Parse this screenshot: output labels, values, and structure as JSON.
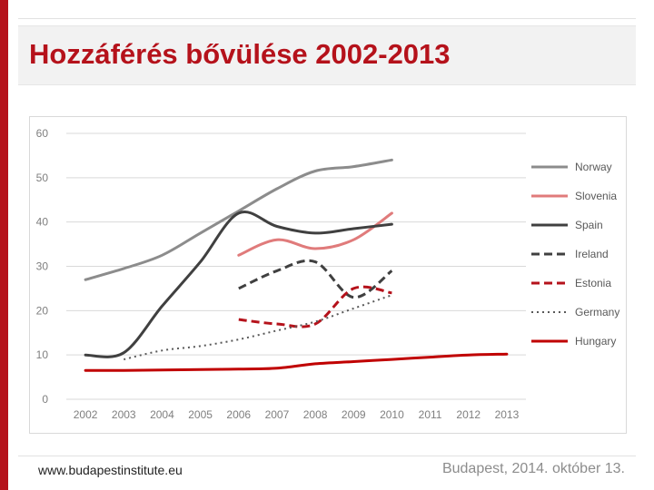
{
  "slide": {
    "title": "Hozzáférés bővülése 2002-2013",
    "footer_left": "www.budapestinstitute.eu",
    "footer_right": "Budapest, 2014. október 13.",
    "accent_color": "#b5121b"
  },
  "chart_data": {
    "type": "line",
    "title": "",
    "xlabel": "",
    "ylabel": "",
    "categories": [
      "2002",
      "2003",
      "2004",
      "2005",
      "2006",
      "2007",
      "2008",
      "2009",
      "2010",
      "2011",
      "2012",
      "2013"
    ],
    "ylim": [
      0,
      60
    ],
    "yticks": [
      0,
      10,
      20,
      30,
      40,
      50,
      60
    ],
    "grid": true,
    "legend_position": "right",
    "series": [
      {
        "name": "Norway",
        "color": "#8c8c8c",
        "dash": "solid",
        "values": [
          27,
          29.5,
          32.5,
          37.5,
          42.5,
          47.5,
          51.5,
          52.5,
          54,
          null,
          null,
          null
        ]
      },
      {
        "name": "Slovenia",
        "color": "#e07b7b",
        "dash": "solid",
        "values": [
          null,
          null,
          null,
          null,
          32.5,
          36,
          34,
          36,
          42,
          null,
          null,
          null
        ]
      },
      {
        "name": "Spain",
        "color": "#404040",
        "dash": "solid",
        "values": [
          10,
          10.5,
          21,
          31,
          42,
          39,
          37.5,
          38.5,
          39.5,
          null,
          null,
          null
        ]
      },
      {
        "name": "Ireland",
        "color": "#404040",
        "dash": "dashed",
        "values": [
          null,
          null,
          null,
          null,
          25,
          29,
          31,
          23,
          29,
          null,
          null,
          null
        ]
      },
      {
        "name": "Estonia",
        "color": "#b5121b",
        "dash": "dashed",
        "values": [
          null,
          null,
          null,
          null,
          18,
          17,
          17,
          25,
          24,
          null,
          null,
          null
        ]
      },
      {
        "name": "Germany",
        "color": "#595959",
        "dash": "dotted",
        "values": [
          null,
          9,
          11,
          12,
          13.5,
          15.5,
          17.5,
          20.5,
          23.5,
          null,
          null,
          null
        ]
      },
      {
        "name": "Hungary",
        "color": "#c00000",
        "dash": "solid",
        "values": [
          6.5,
          6.5,
          6.6,
          6.7,
          6.8,
          7,
          8,
          8.5,
          9,
          9.5,
          10,
          10.2
        ]
      }
    ]
  }
}
